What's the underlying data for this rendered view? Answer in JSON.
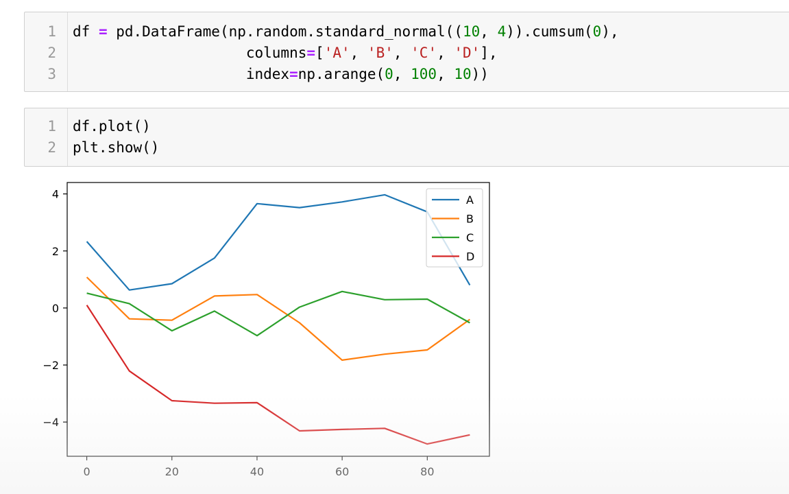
{
  "cells": [
    {
      "lines": [
        {
          "n": "1",
          "tokens": [
            {
              "t": "df ",
              "c": ""
            },
            {
              "t": "=",
              "c": "kw-op"
            },
            {
              "t": " pd.DataFrame(np.random.standard_normal((",
              "c": ""
            },
            {
              "t": "10",
              "c": "num"
            },
            {
              "t": ", ",
              "c": ""
            },
            {
              "t": "4",
              "c": "num"
            },
            {
              "t": ")).cumsum(",
              "c": ""
            },
            {
              "t": "0",
              "c": "num"
            },
            {
              "t": "),",
              "c": ""
            }
          ]
        },
        {
          "n": "2",
          "tokens": [
            {
              "t": "                    columns",
              "c": ""
            },
            {
              "t": "=",
              "c": "kw-op"
            },
            {
              "t": "[",
              "c": ""
            },
            {
              "t": "'A'",
              "c": "str"
            },
            {
              "t": ", ",
              "c": ""
            },
            {
              "t": "'B'",
              "c": "str"
            },
            {
              "t": ", ",
              "c": ""
            },
            {
              "t": "'C'",
              "c": "str"
            },
            {
              "t": ", ",
              "c": ""
            },
            {
              "t": "'D'",
              "c": "str"
            },
            {
              "t": "],",
              "c": ""
            }
          ]
        },
        {
          "n": "3",
          "tokens": [
            {
              "t": "                    index",
              "c": ""
            },
            {
              "t": "=",
              "c": "kw-op"
            },
            {
              "t": "np.arange(",
              "c": ""
            },
            {
              "t": "0",
              "c": "num"
            },
            {
              "t": ", ",
              "c": ""
            },
            {
              "t": "100",
              "c": "num"
            },
            {
              "t": ", ",
              "c": ""
            },
            {
              "t": "10",
              "c": "num"
            },
            {
              "t": "))",
              "c": ""
            }
          ]
        }
      ]
    },
    {
      "lines": [
        {
          "n": "1",
          "tokens": [
            {
              "t": "df.plot()",
              "c": ""
            }
          ]
        },
        {
          "n": "2",
          "tokens": [
            {
              "t": "plt.show()",
              "c": ""
            }
          ]
        }
      ]
    }
  ],
  "chart_data": {
    "type": "line",
    "x": [
      0,
      10,
      20,
      30,
      40,
      50,
      60,
      70,
      80,
      90
    ],
    "series": [
      {
        "name": "A",
        "color": "#1f77b4",
        "values": [
          2.33,
          0.63,
          0.85,
          1.75,
          3.66,
          3.52,
          3.72,
          3.97,
          3.37,
          0.8
        ]
      },
      {
        "name": "B",
        "color": "#ff7f0e",
        "values": [
          1.08,
          -0.38,
          -0.43,
          0.42,
          0.47,
          -0.52,
          -1.83,
          -1.62,
          -1.47,
          -0.4
        ]
      },
      {
        "name": "C",
        "color": "#2ca02c",
        "values": [
          0.52,
          0.15,
          -0.8,
          -0.11,
          -0.97,
          0.03,
          0.58,
          0.29,
          0.31,
          -0.52
        ]
      },
      {
        "name": "D",
        "color": "#d62728",
        "values": [
          0.1,
          -2.21,
          -3.25,
          -3.34,
          -3.32,
          -4.31,
          -4.26,
          -4.22,
          -4.77,
          -4.45
        ]
      }
    ],
    "xticks": [
      "0",
      "20",
      "40",
      "60",
      "80"
    ],
    "xtick_values": [
      0,
      20,
      40,
      60,
      80
    ],
    "yticks": [
      "4",
      "2",
      "0",
      "−2",
      "−4"
    ],
    "ytick_values": [
      4,
      2,
      0,
      -2,
      -4
    ],
    "xlim": [
      -4.6,
      94.6
    ],
    "ylim": [
      -5.2,
      4.4
    ],
    "title": "",
    "xlabel": "",
    "ylabel": "",
    "grid": false,
    "legend": "top-right"
  }
}
